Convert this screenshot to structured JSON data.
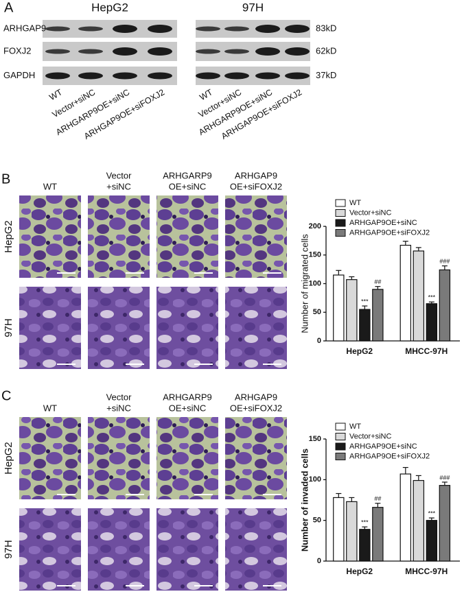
{
  "panel_a": {
    "label": "A",
    "cell_lines": [
      "HepG2",
      "97H"
    ],
    "proteins": [
      "ARHGAP9",
      "FOXJ2",
      "GAPDH"
    ],
    "sizes": [
      "83kD",
      "62kD",
      "37kD"
    ],
    "lanes": [
      "WT",
      "Vector+siNC",
      "ARHGARP9OE+siNC",
      "ARHGAP9OE+siFOXJ2"
    ]
  },
  "panel_b": {
    "label": "B",
    "columns": [
      [
        "WT"
      ],
      [
        "Vector",
        "+siNC"
      ],
      [
        "ARHGARP9",
        "OE+siNC"
      ],
      [
        "ARHGAP9",
        "OE+siFOXJ2"
      ]
    ],
    "rows": [
      "HepG2",
      "97H"
    ]
  },
  "panel_c": {
    "label": "C",
    "columns": [
      [
        "WT"
      ],
      [
        "Vector",
        "+siNC"
      ],
      [
        "ARHGARP9",
        "OE+siNC"
      ],
      [
        "ARHGAP9",
        "OE+siFOXJ2"
      ]
    ],
    "rows": [
      "HepG2",
      "97H"
    ]
  },
  "chart_data": [
    {
      "type": "bar",
      "ylabel": "Number of migrated cells",
      "categories": [
        "HepG2",
        "MHCC-97H"
      ],
      "ylim": [
        0,
        200
      ],
      "yticks": [
        0,
        50,
        100,
        150,
        200
      ],
      "series": [
        {
          "name": "WT",
          "color": "#ffffff",
          "values": [
            115,
            167
          ],
          "errors": [
            8,
            7
          ]
        },
        {
          "name": "Vector+siNC",
          "color": "#d9d9d9",
          "values": [
            107,
            157
          ],
          "errors": [
            5,
            6
          ]
        },
        {
          "name": "ARHGAP9OE+siNC",
          "color": "#1a1a1a",
          "values": [
            55,
            65
          ],
          "errors": [
            6,
            3
          ],
          "labels": [
            "***",
            "***"
          ]
        },
        {
          "name": "ARHGAP9OE+siFOXJ2",
          "color": "#7a7a7a",
          "values": [
            90,
            124
          ],
          "errors": [
            5,
            7
          ],
          "labels": [
            "##",
            "###"
          ]
        }
      ]
    },
    {
      "type": "bar",
      "ylabel": "Number of invaded cells",
      "categories": [
        "HepG2",
        "MHCC-97H"
      ],
      "ylim": [
        0,
        150
      ],
      "yticks": [
        0,
        50,
        100,
        150
      ],
      "series": [
        {
          "name": "WT",
          "color": "#ffffff",
          "values": [
            78,
            107
          ],
          "errors": [
            5,
            8
          ]
        },
        {
          "name": "Vector+siNC",
          "color": "#d9d9d9",
          "values": [
            73,
            99
          ],
          "errors": [
            5,
            6
          ]
        },
        {
          "name": "ARHGAP9OE+siNC",
          "color": "#1a1a1a",
          "values": [
            39,
            50
          ],
          "errors": [
            3,
            3
          ],
          "labels": [
            "***",
            "***"
          ]
        },
        {
          "name": "ARHGAP9OE+siFOXJ2",
          "color": "#7a7a7a",
          "values": [
            66,
            93
          ],
          "errors": [
            5,
            4
          ],
          "labels": [
            "##",
            "###"
          ]
        }
      ]
    }
  ]
}
